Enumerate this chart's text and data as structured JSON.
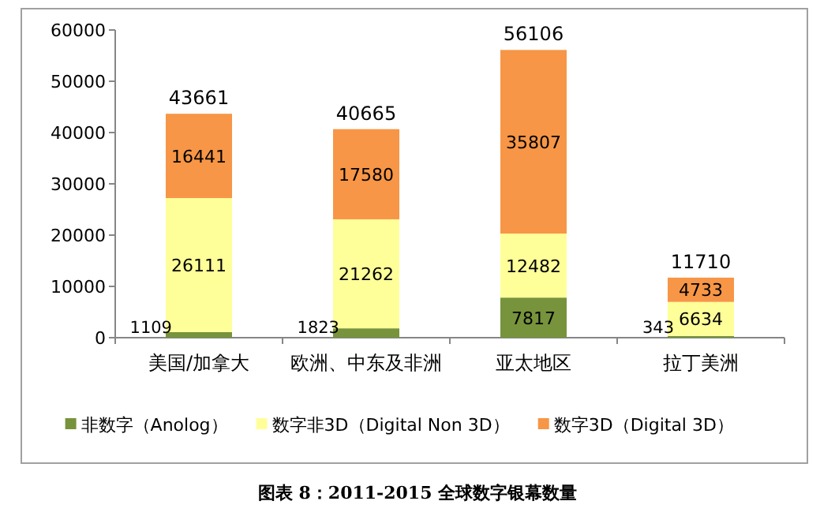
{
  "chart_data": {
    "type": "bar",
    "stacked": true,
    "categories": [
      "美国/加拿大",
      "欧洲、中东及非洲",
      "亚太地区",
      "拉丁美洲"
    ],
    "series": [
      {
        "name": "非数字（Anolog）",
        "color": "#77933c",
        "values": [
          1109,
          1823,
          7817,
          343
        ]
      },
      {
        "name": "数字非3D（Digital Non 3D）",
        "color": "#ffff99",
        "values": [
          26111,
          21262,
          12482,
          6634
        ]
      },
      {
        "name": "数字3D（Digital 3D）",
        "color": "#f79646",
        "values": [
          16441,
          17580,
          35807,
          4733
        ]
      }
    ],
    "ylim": [
      0,
      60000
    ],
    "yticks": [
      0,
      10000,
      20000,
      30000,
      40000,
      50000,
      60000
    ],
    "data_labels": true,
    "totals": [
      "43661",
      "40665",
      "56106",
      "11710"
    ],
    "legend": "bottom",
    "grid": false,
    "annotations": [
      "图表 8：2011-2015 全球数字银幕数量"
    ]
  }
}
